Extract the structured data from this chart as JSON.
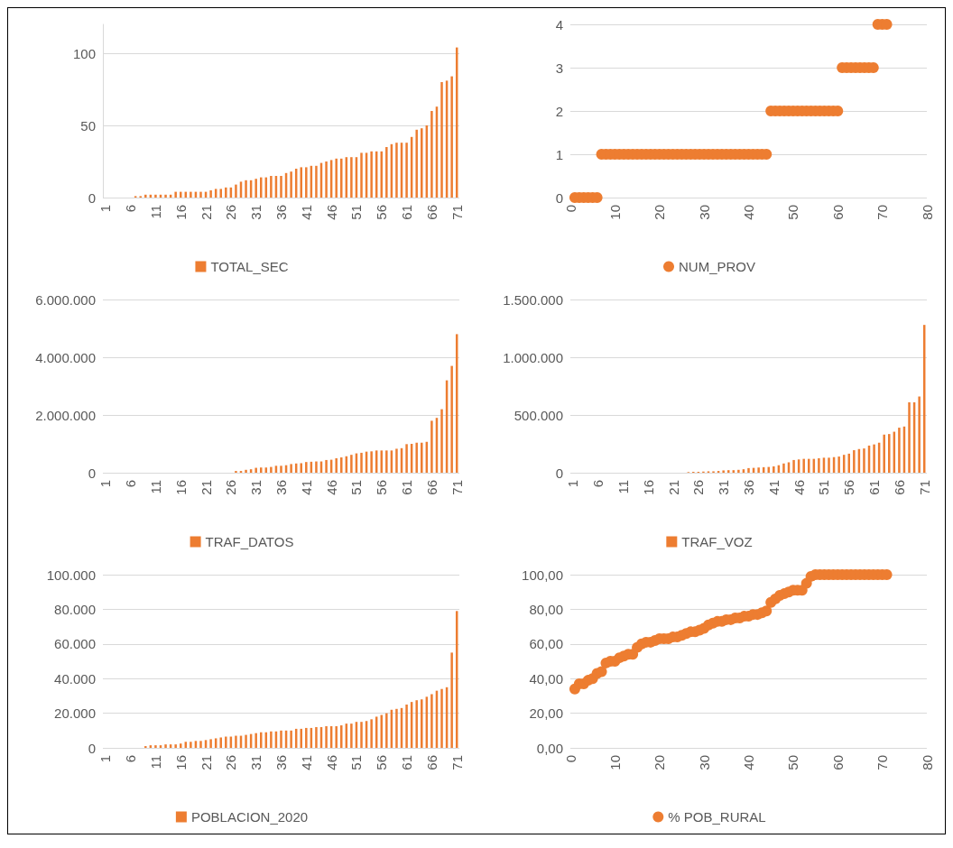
{
  "chart_data": [
    {
      "type": "bar",
      "categories": [
        "1",
        null,
        null,
        null,
        null,
        "6",
        null,
        null,
        null,
        null,
        "11",
        null,
        null,
        null,
        null,
        "16",
        null,
        null,
        null,
        null,
        "21",
        null,
        null,
        null,
        null,
        "26",
        null,
        null,
        null,
        null,
        "31",
        null,
        null,
        null,
        null,
        "36",
        null,
        null,
        null,
        null,
        "41",
        null,
        null,
        null,
        null,
        "46",
        null,
        null,
        null,
        null,
        "51",
        null,
        null,
        null,
        null,
        "56",
        null,
        null,
        null,
        null,
        "61",
        null,
        null,
        null,
        null,
        "66",
        null,
        null,
        null,
        null,
        "71"
      ],
      "series": [
        {
          "name": "TOTAL_SEC",
          "color": "#ed7d31",
          "values": [
            0,
            0,
            0,
            0,
            0,
            0,
            1,
            1,
            2,
            2,
            2,
            2,
            2,
            2,
            4,
            4,
            4,
            4,
            4,
            4,
            4,
            5,
            6,
            6,
            7,
            7,
            9,
            11,
            12,
            12,
            13,
            14,
            14,
            15,
            15,
            15,
            17,
            18,
            20,
            21,
            21,
            22,
            22,
            24,
            25,
            26,
            27,
            27,
            28,
            28,
            28,
            31,
            31,
            32,
            32,
            32,
            35,
            37,
            38,
            38,
            38,
            42,
            47,
            48,
            50,
            60,
            63,
            80,
            81,
            84,
            104
          ]
        }
      ],
      "ylim": [
        0,
        120
      ],
      "yticks": [
        0,
        50,
        100
      ],
      "grid": "y",
      "legend": "bottom"
    },
    {
      "type": "scatter",
      "x": [
        1,
        2,
        3,
        4,
        5,
        6,
        7,
        8,
        9,
        10,
        11,
        12,
        13,
        14,
        15,
        16,
        17,
        18,
        19,
        20,
        21,
        22,
        23,
        24,
        25,
        26,
        27,
        28,
        29,
        30,
        31,
        32,
        33,
        34,
        35,
        36,
        37,
        38,
        39,
        40,
        41,
        42,
        43,
        44,
        45,
        46,
        47,
        48,
        49,
        50,
        51,
        52,
        53,
        54,
        55,
        56,
        57,
        58,
        59,
        60,
        61,
        62,
        63,
        64,
        65,
        66,
        67,
        68,
        69,
        70,
        71
      ],
      "series": [
        {
          "name": "NUM_PROV",
          "color": "#ed7d31",
          "values": [
            0,
            0,
            0,
            0,
            0,
            0,
            1,
            1,
            1,
            1,
            1,
            1,
            1,
            1,
            1,
            1,
            1,
            1,
            1,
            1,
            1,
            1,
            1,
            1,
            1,
            1,
            1,
            1,
            1,
            1,
            1,
            1,
            1,
            1,
            1,
            1,
            1,
            1,
            1,
            1,
            1,
            1,
            1,
            1,
            2,
            2,
            2,
            2,
            2,
            2,
            2,
            2,
            2,
            2,
            2,
            2,
            2,
            2,
            2,
            2,
            3,
            3,
            3,
            3,
            3,
            3,
            3,
            3,
            4,
            4,
            4
          ]
        }
      ],
      "xlim": [
        0,
        80
      ],
      "xticks": [
        0,
        10,
        20,
        30,
        40,
        50,
        60,
        70,
        80
      ],
      "ylim": [
        0,
        4
      ],
      "yticks": [
        0,
        1,
        2,
        3,
        4
      ],
      "grid": "y",
      "legend": "bottom",
      "marker": "circle"
    },
    {
      "type": "bar",
      "categories": [
        "1",
        null,
        null,
        null,
        null,
        "6",
        null,
        null,
        null,
        null,
        "11",
        null,
        null,
        null,
        null,
        "16",
        null,
        null,
        null,
        null,
        "21",
        null,
        null,
        null,
        null,
        "26",
        null,
        null,
        null,
        null,
        "31",
        null,
        null,
        null,
        null,
        "36",
        null,
        null,
        null,
        null,
        "41",
        null,
        null,
        null,
        null,
        "46",
        null,
        null,
        null,
        null,
        "51",
        null,
        null,
        null,
        null,
        "56",
        null,
        null,
        null,
        null,
        "61",
        null,
        null,
        null,
        null,
        "66",
        null,
        null,
        null,
        null,
        "71"
      ],
      "series": [
        {
          "name": "TRAF_DATOS",
          "color": "#ed7d31",
          "values": [
            0,
            0,
            0,
            0,
            0,
            0,
            0,
            0,
            0,
            0,
            0,
            0,
            0,
            0,
            0,
            0,
            0,
            0,
            0,
            0,
            0,
            0,
            0,
            0,
            0,
            0,
            60000,
            60000,
            100000,
            120000,
            170000,
            180000,
            180000,
            200000,
            240000,
            240000,
            260000,
            300000,
            320000,
            330000,
            370000,
            380000,
            390000,
            390000,
            440000,
            450000,
            500000,
            530000,
            570000,
            620000,
            670000,
            690000,
            730000,
            740000,
            770000,
            770000,
            770000,
            770000,
            830000,
            850000,
            990000,
            1000000,
            1040000,
            1040000,
            1070000,
            1800000,
            1900000,
            2200000,
            3200000,
            3700000,
            4800000
          ]
        }
      ],
      "ylim": [
        0,
        6000000
      ],
      "yticks": [
        {
          "value": 0,
          "label": "0"
        },
        {
          "value": 2000000,
          "label": "2.000.000"
        },
        {
          "value": 4000000,
          "label": "4.000.000"
        },
        {
          "value": 6000000,
          "label": "6.000.000"
        }
      ],
      "grid": "y",
      "legend": "bottom"
    },
    {
      "type": "bar",
      "categories": [
        "1",
        null,
        null,
        null,
        null,
        "6",
        null,
        null,
        null,
        null,
        "11",
        null,
        null,
        null,
        null,
        "16",
        null,
        null,
        null,
        null,
        "21",
        null,
        null,
        null,
        null,
        "26",
        null,
        null,
        null,
        null,
        "31",
        null,
        null,
        null,
        null,
        "36",
        null,
        null,
        null,
        null,
        "41",
        null,
        null,
        null,
        null,
        "46",
        null,
        null,
        null,
        null,
        "51",
        null,
        null,
        null,
        null,
        "56",
        null,
        null,
        null,
        null,
        "61",
        null,
        null,
        null,
        null,
        "66",
        null,
        null,
        null,
        null,
        "71"
      ],
      "series": [
        {
          "name": "TRAF_VOZ",
          "color": "#ed7d31",
          "values": [
            0,
            0,
            0,
            0,
            0,
            0,
            0,
            0,
            0,
            0,
            0,
            0,
            0,
            0,
            0,
            0,
            0,
            0,
            0,
            0,
            0,
            0,
            0,
            5000,
            8000,
            8000,
            10000,
            12000,
            12000,
            15000,
            20000,
            22000,
            22000,
            25000,
            30000,
            40000,
            42000,
            45000,
            48000,
            50000,
            55000,
            65000,
            80000,
            90000,
            110000,
            115000,
            120000,
            120000,
            120000,
            125000,
            130000,
            130000,
            135000,
            140000,
            155000,
            165000,
            195000,
            205000,
            210000,
            235000,
            245000,
            260000,
            330000,
            335000,
            355000,
            390000,
            400000,
            610000,
            610000,
            660000,
            1280000
          ]
        }
      ],
      "ylim": [
        0,
        1500000
      ],
      "yticks": [
        {
          "value": 0,
          "label": "0"
        },
        {
          "value": 500000,
          "label": "500.000"
        },
        {
          "value": 1000000,
          "label": "1.000.000"
        },
        {
          "value": 1500000,
          "label": "1.500.000"
        }
      ],
      "grid": "y",
      "legend": "bottom"
    },
    {
      "type": "bar",
      "categories": [
        "1",
        null,
        null,
        null,
        null,
        "6",
        null,
        null,
        null,
        null,
        "11",
        null,
        null,
        null,
        null,
        "16",
        null,
        null,
        null,
        null,
        "21",
        null,
        null,
        null,
        null,
        "26",
        null,
        null,
        null,
        null,
        "31",
        null,
        null,
        null,
        null,
        "36",
        null,
        null,
        null,
        null,
        "41",
        null,
        null,
        null,
        null,
        "46",
        null,
        null,
        null,
        null,
        "51",
        null,
        null,
        null,
        null,
        "56",
        null,
        null,
        null,
        null,
        "61",
        null,
        null,
        null,
        null,
        "66",
        null,
        null,
        null,
        null,
        "71"
      ],
      "series": [
        {
          "name": "POBLACION_2020",
          "color": "#ed7d31",
          "values": [
            0,
            0,
            0,
            0,
            0,
            0,
            0,
            0,
            1000,
            1500,
            1500,
            1500,
            2000,
            2000,
            2000,
            2500,
            3500,
            3500,
            4000,
            4000,
            4500,
            5000,
            5500,
            6000,
            6500,
            6500,
            7000,
            7000,
            7500,
            8000,
            8500,
            9000,
            9000,
            9500,
            9500,
            10000,
            10000,
            10000,
            11000,
            11000,
            11500,
            11500,
            12000,
            12000,
            12500,
            12500,
            12500,
            13000,
            14000,
            14000,
            15000,
            15000,
            15500,
            16500,
            18000,
            19000,
            20000,
            22000,
            22500,
            23000,
            25000,
            26500,
            27500,
            28000,
            29500,
            31000,
            33000,
            34000,
            35000,
            55000,
            79000
          ]
        }
      ],
      "ylim": [
        0,
        100000
      ],
      "yticks": [
        {
          "value": 0,
          "label": "0"
        },
        {
          "value": 20000,
          "label": "20.000"
        },
        {
          "value": 40000,
          "label": "40.000"
        },
        {
          "value": 60000,
          "label": "60.000"
        },
        {
          "value": 80000,
          "label": "80.000"
        },
        {
          "value": 100000,
          "label": "100.000"
        }
      ],
      "grid": "y",
      "legend": "bottom"
    },
    {
      "type": "scatter",
      "x": [
        1,
        2,
        3,
        4,
        5,
        6,
        7,
        8,
        9,
        10,
        11,
        12,
        13,
        14,
        15,
        16,
        17,
        18,
        19,
        20,
        21,
        22,
        23,
        24,
        25,
        26,
        27,
        28,
        29,
        30,
        31,
        32,
        33,
        34,
        35,
        36,
        37,
        38,
        39,
        40,
        41,
        42,
        43,
        44,
        45,
        46,
        47,
        48,
        49,
        50,
        51,
        52,
        53,
        54,
        55,
        56,
        57,
        58,
        59,
        60,
        61,
        62,
        63,
        64,
        65,
        66,
        67,
        68,
        69,
        70,
        71
      ],
      "series": [
        {
          "name": "% POB_RURAL",
          "color": "#ed7d31",
          "values": [
            34,
            37,
            37,
            39,
            40,
            43,
            44,
            49,
            50,
            50,
            52,
            53,
            54,
            54,
            58,
            60,
            61,
            61,
            62,
            63,
            63,
            63,
            64,
            64,
            65,
            66,
            67,
            67,
            68,
            69,
            71,
            72,
            73,
            73,
            74,
            74,
            75,
            75,
            76,
            76,
            77,
            77,
            78,
            79,
            84,
            86,
            88,
            89,
            90,
            91,
            91,
            91,
            95,
            99,
            100,
            100,
            100,
            100,
            100,
            100,
            100,
            100,
            100,
            100,
            100,
            100,
            100,
            100,
            100,
            100,
            100
          ]
        }
      ],
      "xlim": [
        0,
        80
      ],
      "xticks": [
        0,
        10,
        20,
        30,
        40,
        50,
        60,
        70,
        80
      ],
      "ylim": [
        0,
        100
      ],
      "yticks": [
        {
          "value": 0,
          "label": "0,00"
        },
        {
          "value": 20,
          "label": "20,00"
        },
        {
          "value": 40,
          "label": "40,00"
        },
        {
          "value": 60,
          "label": "60,00"
        },
        {
          "value": 80,
          "label": "80,00"
        },
        {
          "value": 100,
          "label": "100,00"
        }
      ],
      "grid": "y",
      "legend": "bottom",
      "marker": "circle"
    }
  ]
}
